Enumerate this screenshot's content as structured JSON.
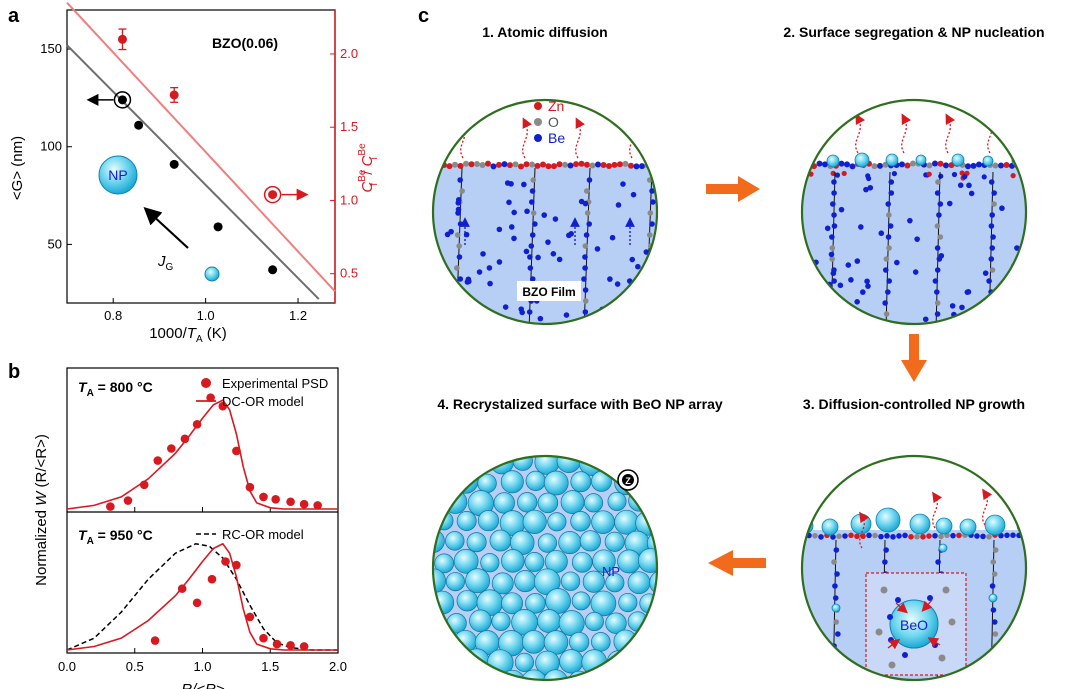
{
  "panel_labels": {
    "a": "a",
    "b": "b",
    "c": "c"
  },
  "colors": {
    "red": "#d71920",
    "light_red": "#ef7f7f",
    "gray_line": "#6e6e6e",
    "np_cyan": "#5fd3ee",
    "film_blue": "#b8cff5",
    "circle_border": "#2e6e1e",
    "arrow_orange": "#f26a1b",
    "be_blue": "#1020d0",
    "o_gray": "#8a8a8a"
  },
  "chart_data": [
    {
      "type": "scatter",
      "panel": "a",
      "annotation": "BZO(0.06)",
      "xlabel_main": "1000/",
      "xlabel_italic": "T",
      "xlabel_sub": "A",
      "xlabel_unit": " (K)",
      "ylabel_left": "<G> (nm)",
      "ylabel_right_main": "C",
      "ylabel_right_sup1": "Be",
      "ylabel_right_sub1": "f",
      "ylabel_right_slash": "/ ",
      "ylabel_right_sup2": "Be",
      "ylabel_right_sub2": "i",
      "xlim": [
        0.7,
        1.28
      ],
      "ylim_left": [
        20,
        170
      ],
      "ylim_right": [
        0.3,
        2.3
      ],
      "xticks": [
        "0.8",
        "1.0",
        "1.2"
      ],
      "xtick_values": [
        0.8,
        1.0,
        1.2
      ],
      "yticks_left": [
        "50",
        "100",
        "150"
      ],
      "ytick_left_values": [
        50,
        100,
        150
      ],
      "yticks_right": [
        "0.5",
        "1.0",
        "1.5",
        "2.0"
      ],
      "ytick_right_values": [
        0.5,
        1.0,
        1.5,
        2.0
      ],
      "series": [
        {
          "axis": "left",
          "x": [
            0.82,
            0.855,
            0.932,
            1.027,
            1.145
          ],
          "y": [
            124,
            111,
            91,
            59,
            37
          ],
          "fit": {
            "x": [
              0.7,
              1.245
            ],
            "y": [
              152,
              22
            ]
          }
        },
        {
          "axis": "right",
          "x": [
            0.82,
            0.932,
            1.145
          ],
          "y": [
            2.1,
            1.72,
            1.04
          ],
          "yerr": [
            0.07,
            0.05,
            0.0
          ],
          "fit": {
            "x": [
              0.7,
              1.28
            ],
            "y": [
              2.35,
              0.38
            ]
          }
        }
      ],
      "np_label": "NP",
      "flux_label_main": "J",
      "flux_label_sub": "G"
    },
    {
      "type": "line",
      "panel": "b",
      "xlabel": "R/<R>",
      "ylabel_main": "Normalized ",
      "ylabel_italic": "W",
      "ylabel_rest": " (R/<R>)",
      "xlim": [
        0,
        2.0
      ],
      "xticks": [
        "0.0",
        "0.5",
        "1.0",
        "1.5",
        "2.0"
      ],
      "xtick_values": [
        0.0,
        0.5,
        1.0,
        1.5,
        2.0
      ],
      "top": {
        "temp_prefix": "T",
        "temp_sub": "A",
        "temp_value": " = 800 °C",
        "legend": [
          "Experimental PSD",
          "DC-OR model"
        ],
        "points_x": [
          0.32,
          0.45,
          0.57,
          0.67,
          0.77,
          0.87,
          0.96,
          1.06,
          1.15,
          1.25,
          1.35,
          1.45,
          1.54,
          1.65,
          1.75,
          1.85
        ],
        "points_y": [
          0.02,
          0.07,
          0.2,
          0.4,
          0.5,
          0.58,
          0.7,
          0.92,
          0.85,
          0.48,
          0.18,
          0.1,
          0.08,
          0.06,
          0.04,
          0.03
        ],
        "model_x": [
          0.0,
          0.2,
          0.4,
          0.6,
          0.8,
          0.9,
          1.0,
          1.08,
          1.15,
          1.2,
          1.25,
          1.3,
          1.35,
          1.4,
          1.5,
          1.6,
          1.8,
          2.0
        ],
        "model_y": [
          0.0,
          0.03,
          0.1,
          0.25,
          0.46,
          0.6,
          0.75,
          0.86,
          0.9,
          0.82,
          0.62,
          0.35,
          0.15,
          0.05,
          0.01,
          0.0,
          0.0,
          0.0
        ]
      },
      "bottom": {
        "temp_prefix": "T",
        "temp_sub": "A",
        "temp_value": " = 950 °C",
        "legend": [
          "RC-OR model"
        ],
        "points_x": [
          0.65,
          0.85,
          0.96,
          1.07,
          1.17,
          1.25,
          1.35,
          1.45,
          1.55,
          1.65,
          1.75
        ],
        "points_y": [
          0.08,
          0.52,
          0.4,
          0.6,
          0.75,
          0.72,
          0.28,
          0.1,
          0.05,
          0.04,
          0.03
        ],
        "model_x": [
          0.0,
          0.2,
          0.4,
          0.6,
          0.8,
          0.9,
          1.0,
          1.08,
          1.15,
          1.2,
          1.25,
          1.3,
          1.35,
          1.4,
          1.5,
          1.6,
          1.8,
          2.0
        ],
        "model_y": [
          0.0,
          0.03,
          0.1,
          0.25,
          0.46,
          0.6,
          0.75,
          0.86,
          0.9,
          0.82,
          0.62,
          0.35,
          0.15,
          0.05,
          0.01,
          0.0,
          0.0,
          0.0
        ],
        "rc_x": [
          0.0,
          0.2,
          0.4,
          0.6,
          0.8,
          0.95,
          1.05,
          1.15,
          1.25,
          1.35,
          1.45,
          1.55,
          1.65,
          1.8,
          2.0
        ],
        "rc_y": [
          0.0,
          0.1,
          0.32,
          0.6,
          0.82,
          0.9,
          0.88,
          0.78,
          0.6,
          0.38,
          0.18,
          0.06,
          0.02,
          0.0,
          0.0
        ]
      }
    }
  ],
  "schematic": {
    "step1": "1. Atomic diffusion",
    "step2": "2. Surface segregation & NP nucleation",
    "step3": "3. Diffusion-controlled NP growth",
    "step4": "4. Recrystalized surface with BeO NP array",
    "legend": [
      {
        "symbol": "Zn",
        "color": "#d71920"
      },
      {
        "symbol": "O",
        "color": "#8a8a8a"
      },
      {
        "symbol": "Be",
        "color": "#1020d0"
      }
    ],
    "film_label": "BZO Film",
    "beo_label": "BeO",
    "np_label": "NP",
    "z_label": "Z"
  }
}
